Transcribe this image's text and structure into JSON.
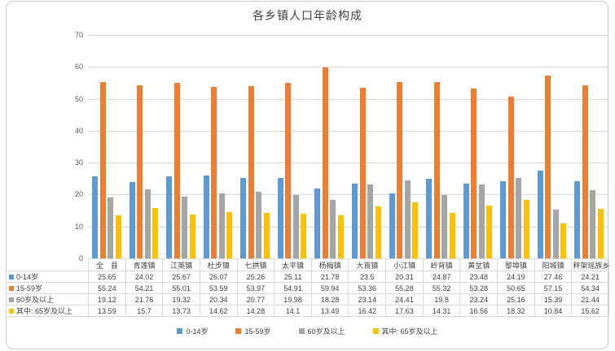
{
  "chart_data": {
    "type": "bar",
    "title": "各乡镇人口年龄构成",
    "categories": [
      "全　县",
      "青莲镇",
      "江英镇",
      "杜步镇",
      "七拱镇",
      "太平镇",
      "杨梅镇",
      "大崀镇",
      "小江镇",
      "岭背镇",
      "黄坌镇",
      "黎埠镇",
      "阳城镇",
      "秤架瑶族乡"
    ],
    "series": [
      {
        "name": "0-14岁",
        "color": "#5B9BD5",
        "values": [
          25.65,
          24.02,
          25.67,
          26.07,
          25.26,
          25.11,
          21.78,
          23.5,
          20.31,
          24.87,
          23.48,
          24.19,
          27.46,
          24.21
        ]
      },
      {
        "name": "15-59岁",
        "color": "#ED7D31",
        "values": [
          55.24,
          54.21,
          55.01,
          53.59,
          53.97,
          54.91,
          59.94,
          53.36,
          55.28,
          55.32,
          53.28,
          50.65,
          57.15,
          54.34
        ]
      },
      {
        "name": "60岁及以上",
        "color": "#A5A5A5",
        "values": [
          19.12,
          21.76,
          19.32,
          20.34,
          20.77,
          19.98,
          18.28,
          23.14,
          24.41,
          19.8,
          23.24,
          25.16,
          15.39,
          21.44
        ]
      },
      {
        "name": "其中: 65岁及以上",
        "color": "#FFC000",
        "values": [
          13.59,
          15.7,
          13.73,
          14.62,
          14.28,
          14.1,
          13.49,
          16.42,
          17.63,
          14.31,
          16.56,
          18.32,
          10.84,
          15.62
        ]
      }
    ],
    "ylim": [
      0,
      70
    ],
    "ytick_step": 10,
    "grid": true,
    "legend_position": "bottom",
    "data_table_shown": true
  }
}
